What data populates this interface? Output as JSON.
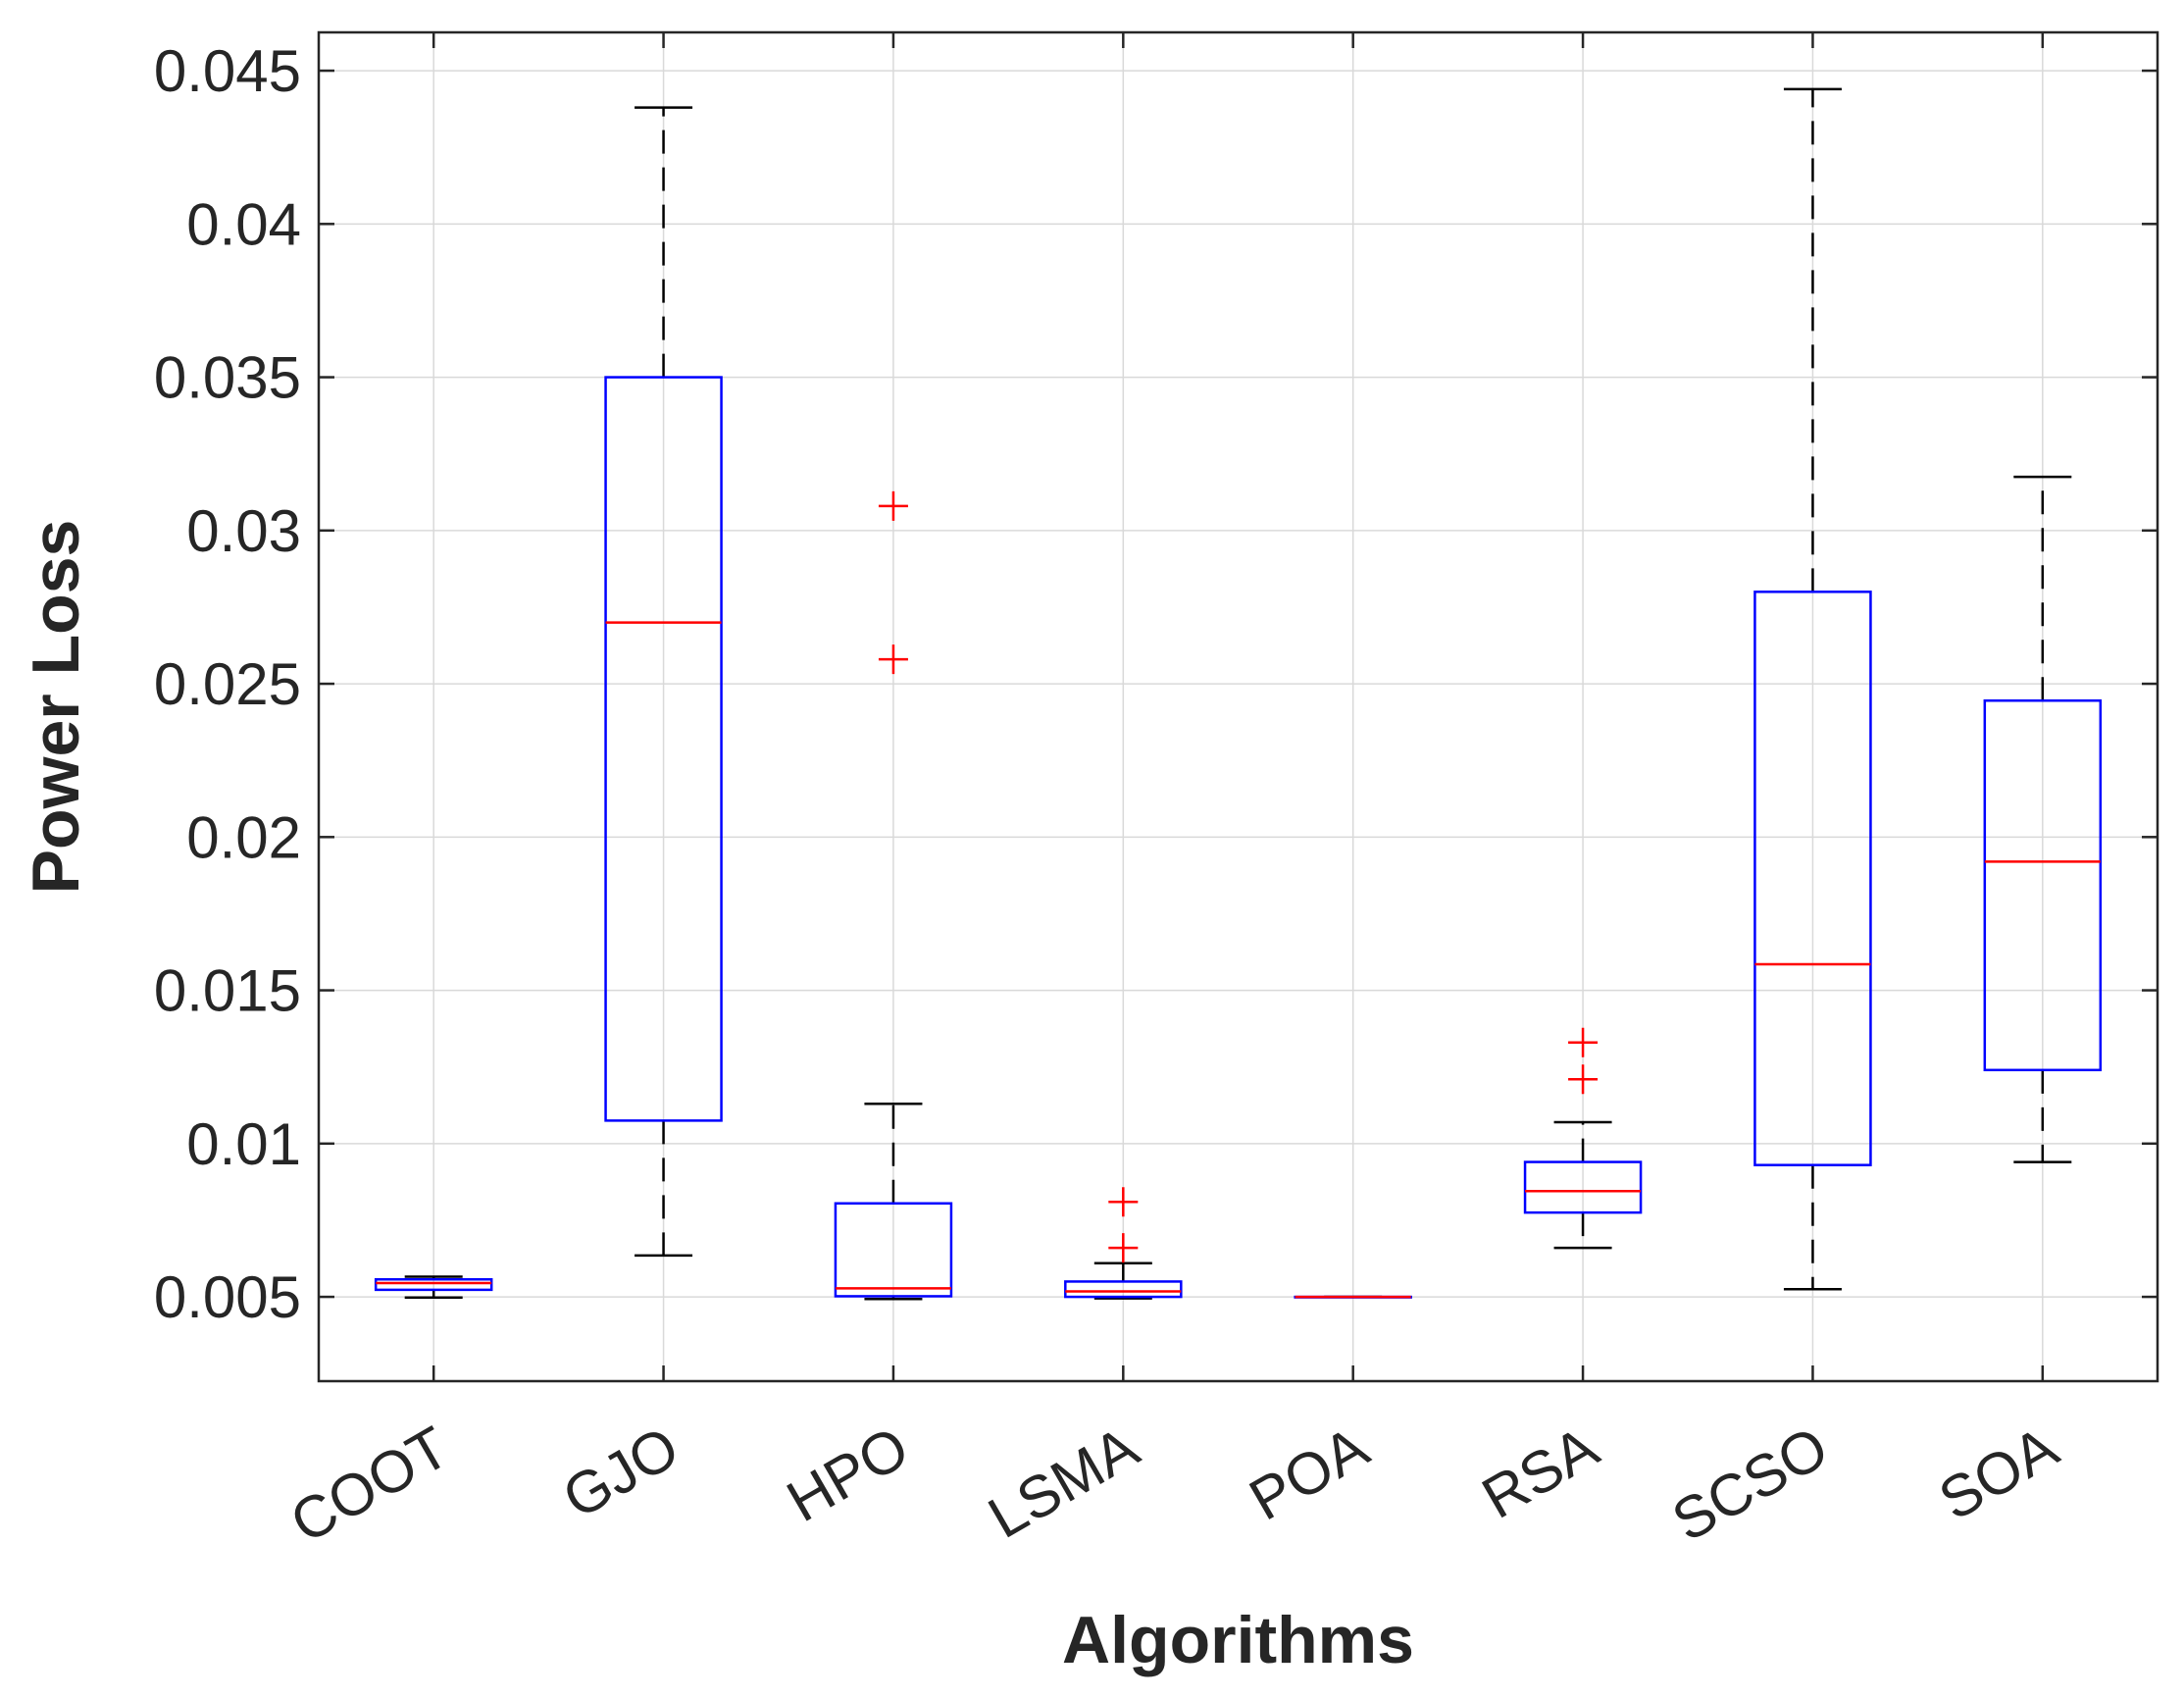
{
  "chart_data": {
    "type": "boxplot",
    "xlabel": "Algorithms",
    "ylabel": "Power Loss",
    "ylim": [
      0.00225,
      0.04625
    ],
    "yticks": [
      0.005,
      0.01,
      0.015,
      0.02,
      0.025,
      0.03,
      0.035,
      0.04,
      0.045
    ],
    "ytick_labels": [
      "0.005",
      "0.01",
      "0.015",
      "0.02",
      "0.025",
      "0.03",
      "0.035",
      "0.04",
      "0.045"
    ],
    "grid": true,
    "categories": [
      "COOT",
      "GJO",
      "HPO",
      "LSMA",
      "POA",
      "RSA",
      "SCSO",
      "SOA"
    ],
    "boxes": [
      {
        "name": "COOT",
        "whisker_low": 0.00498,
        "q1": 0.00523,
        "median": 0.00545,
        "q3": 0.00557,
        "whisker_high": 0.00566,
        "outliers": []
      },
      {
        "name": "GJO",
        "whisker_low": 0.00635,
        "q1": 0.01075,
        "median": 0.027,
        "q3": 0.035,
        "whisker_high": 0.0438,
        "outliers": []
      },
      {
        "name": "HPO",
        "whisker_low": 0.00493,
        "q1": 0.00502,
        "median": 0.00528,
        "q3": 0.00805,
        "whisker_high": 0.0113,
        "outliers": [
          0.0258,
          0.0308
        ]
      },
      {
        "name": "LSMA",
        "whisker_low": 0.00495,
        "q1": 0.005,
        "median": 0.00518,
        "q3": 0.0055,
        "whisker_high": 0.0061,
        "outliers": [
          0.0066,
          0.0081
        ]
      },
      {
        "name": "POA",
        "whisker_low": 0.005,
        "q1": 0.005,
        "median": 0.005,
        "q3": 0.005,
        "whisker_high": 0.005,
        "outliers": []
      },
      {
        "name": "RSA",
        "whisker_low": 0.0066,
        "q1": 0.00775,
        "median": 0.00845,
        "q3": 0.0094,
        "whisker_high": 0.0107,
        "outliers": [
          0.0121,
          0.0133
        ]
      },
      {
        "name": "SCSO",
        "whisker_low": 0.00525,
        "q1": 0.0093,
        "median": 0.01585,
        "q3": 0.028,
        "whisker_high": 0.0444,
        "outliers": []
      },
      {
        "name": "SOA",
        "whisker_low": 0.0094,
        "q1": 0.0124,
        "median": 0.0192,
        "q3": 0.02445,
        "whisker_high": 0.03175,
        "outliers": []
      }
    ],
    "colors": {
      "box": "#0000ff",
      "median": "#ff0000",
      "whisker": "#000000",
      "outlier": "#ff0000",
      "grid": "#d9d9d9",
      "axis": "#262626"
    }
  }
}
